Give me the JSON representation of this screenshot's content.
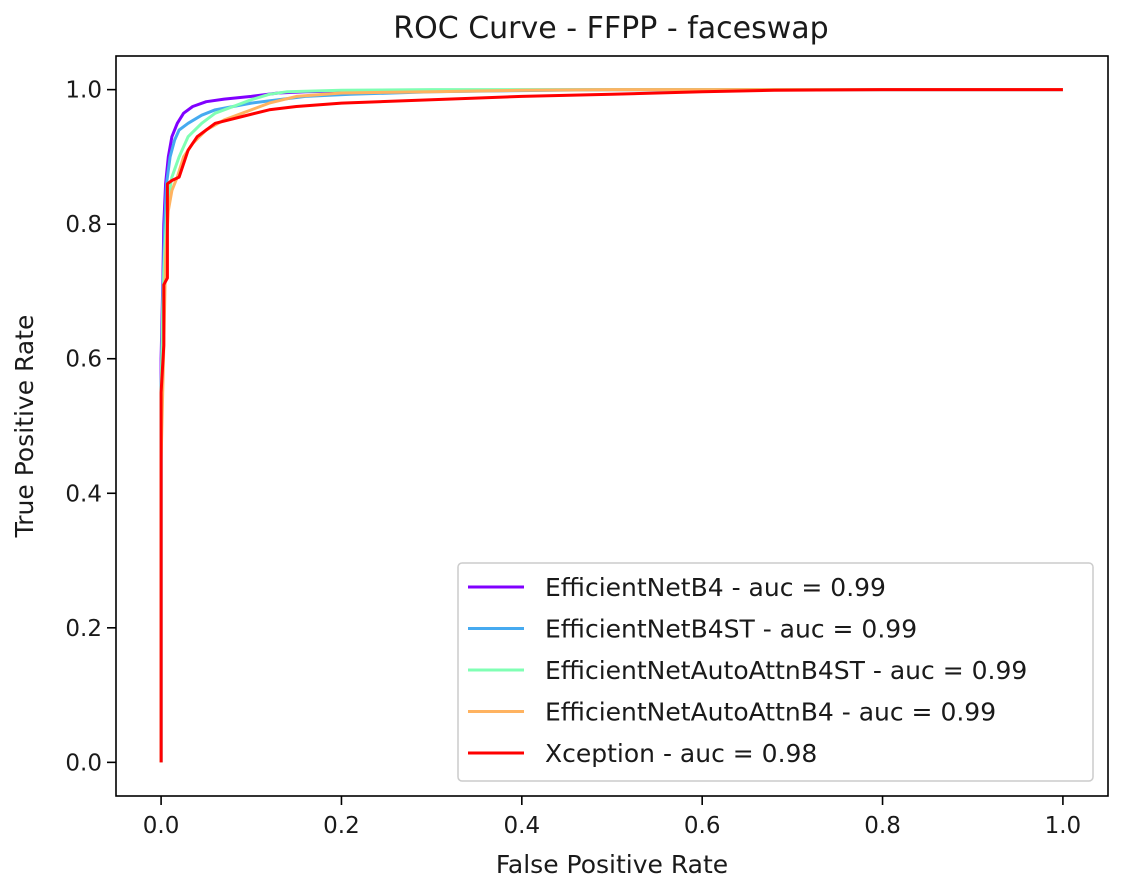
{
  "chart_data": {
    "type": "line",
    "title": "ROC Curve - FFPP - faceswap",
    "xlabel": "False Positive Rate",
    "ylabel": "True Positive Rate",
    "xlim": [
      -0.05,
      1.05
    ],
    "ylim": [
      -0.05,
      1.05
    ],
    "x_ticks": [
      "0.0",
      "0.2",
      "0.4",
      "0.6",
      "0.8",
      "1.0"
    ],
    "y_ticks": [
      "0.0",
      "0.2",
      "0.4",
      "0.6",
      "0.8",
      "1.0"
    ],
    "grid": false,
    "legend_position": "lower-right",
    "series": [
      {
        "name": "EfficientNetB4 - auc = 0.99",
        "color": "#8000ff",
        "x": [
          0.0,
          0.0,
          0.002,
          0.003,
          0.005,
          0.008,
          0.012,
          0.018,
          0.025,
          0.035,
          0.05,
          0.07,
          0.1,
          0.13,
          0.16,
          0.2,
          0.3,
          0.5,
          0.7,
          1.0
        ],
        "y": [
          0.0,
          0.6,
          0.72,
          0.8,
          0.86,
          0.9,
          0.93,
          0.95,
          0.965,
          0.975,
          0.982,
          0.986,
          0.99,
          0.995,
          0.997,
          0.998,
          0.999,
          1.0,
          1.0,
          1.0
        ]
      },
      {
        "name": "EfficientNetB4ST - auc = 0.99",
        "color": "#46aaf0",
        "x": [
          0.0,
          0.0,
          0.002,
          0.004,
          0.006,
          0.01,
          0.015,
          0.02,
          0.03,
          0.045,
          0.06,
          0.08,
          0.1,
          0.13,
          0.16,
          0.21,
          0.3,
          0.5,
          0.7,
          1.0
        ],
        "y": [
          0.0,
          0.55,
          0.7,
          0.8,
          0.86,
          0.9,
          0.925,
          0.94,
          0.95,
          0.962,
          0.97,
          0.975,
          0.98,
          0.985,
          0.99,
          0.993,
          0.997,
          1.0,
          1.0,
          1.0
        ]
      },
      {
        "name": "EfficientNetAutoAttnB4ST - auc = 0.99",
        "color": "#80ffb4",
        "x": [
          0.0,
          0.0,
          0.002,
          0.004,
          0.007,
          0.012,
          0.02,
          0.03,
          0.045,
          0.06,
          0.08,
          0.1,
          0.12,
          0.14,
          0.2,
          0.3,
          0.5,
          0.7,
          1.0
        ],
        "y": [
          0.0,
          0.55,
          0.68,
          0.76,
          0.83,
          0.87,
          0.9,
          0.93,
          0.95,
          0.965,
          0.975,
          0.985,
          0.993,
          0.997,
          0.999,
          1.0,
          1.0,
          1.0,
          1.0
        ]
      },
      {
        "name": "EfficientNetAutoAttnB4 - auc = 0.99",
        "color": "#ffb360",
        "x": [
          0.0,
          0.0,
          0.003,
          0.005,
          0.008,
          0.012,
          0.018,
          0.025,
          0.035,
          0.05,
          0.07,
          0.09,
          0.12,
          0.15,
          0.2,
          0.3,
          0.4,
          0.5,
          0.7,
          1.0
        ],
        "y": [
          0.0,
          0.45,
          0.62,
          0.75,
          0.82,
          0.85,
          0.87,
          0.9,
          0.92,
          0.94,
          0.955,
          0.965,
          0.98,
          0.99,
          0.995,
          0.997,
          0.999,
          1.0,
          1.0,
          1.0
        ]
      },
      {
        "name": "Xception - auc = 0.98",
        "color": "#ff0000",
        "x": [
          0.0,
          0.0,
          0.003,
          0.003,
          0.007,
          0.007,
          0.012,
          0.02,
          0.025,
          0.03,
          0.04,
          0.05,
          0.06,
          0.075,
          0.09,
          0.12,
          0.15,
          0.2,
          0.3,
          0.4,
          0.5,
          0.6,
          0.68,
          0.8,
          1.0
        ],
        "y": [
          0.0,
          0.55,
          0.62,
          0.71,
          0.72,
          0.86,
          0.865,
          0.87,
          0.89,
          0.91,
          0.93,
          0.94,
          0.95,
          0.955,
          0.96,
          0.97,
          0.975,
          0.98,
          0.985,
          0.99,
          0.993,
          0.997,
          0.999,
          1.0,
          1.0
        ]
      }
    ]
  }
}
